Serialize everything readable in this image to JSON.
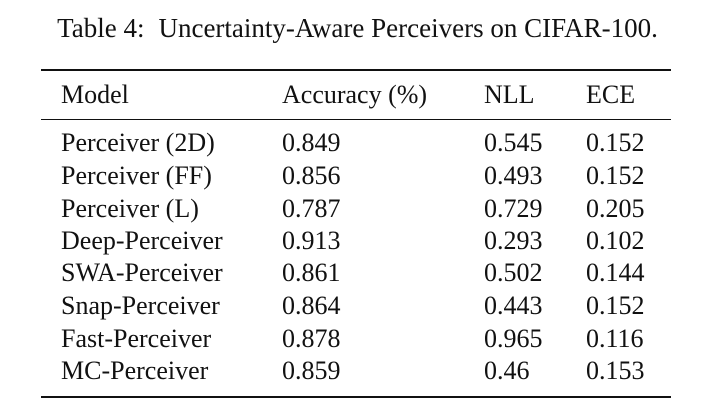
{
  "caption": {
    "label": "Table 4:",
    "text": "Uncertainty-Aware Perceivers on CIFAR-100."
  },
  "table": {
    "headers": [
      "Model",
      "Accuracy (%)",
      "NLL",
      "ECE"
    ],
    "rows": [
      [
        "Perceiver (2D)",
        "0.849",
        "0.545",
        "0.152"
      ],
      [
        "Perceiver (FF)",
        "0.856",
        "0.493",
        "0.152"
      ],
      [
        "Perceiver (L)",
        "0.787",
        "0.729",
        "0.205"
      ],
      [
        "Deep-Perceiver",
        "0.913",
        "0.293",
        "0.102"
      ],
      [
        "SWA-Perceiver",
        "0.861",
        "0.502",
        "0.144"
      ],
      [
        "Snap-Perceiver",
        "0.864",
        "0.443",
        "0.152"
      ],
      [
        "Fast-Perceiver",
        "0.878",
        "0.965",
        "0.116"
      ],
      [
        "MC-Perceiver",
        "0.859",
        "0.46",
        "0.153"
      ]
    ]
  }
}
